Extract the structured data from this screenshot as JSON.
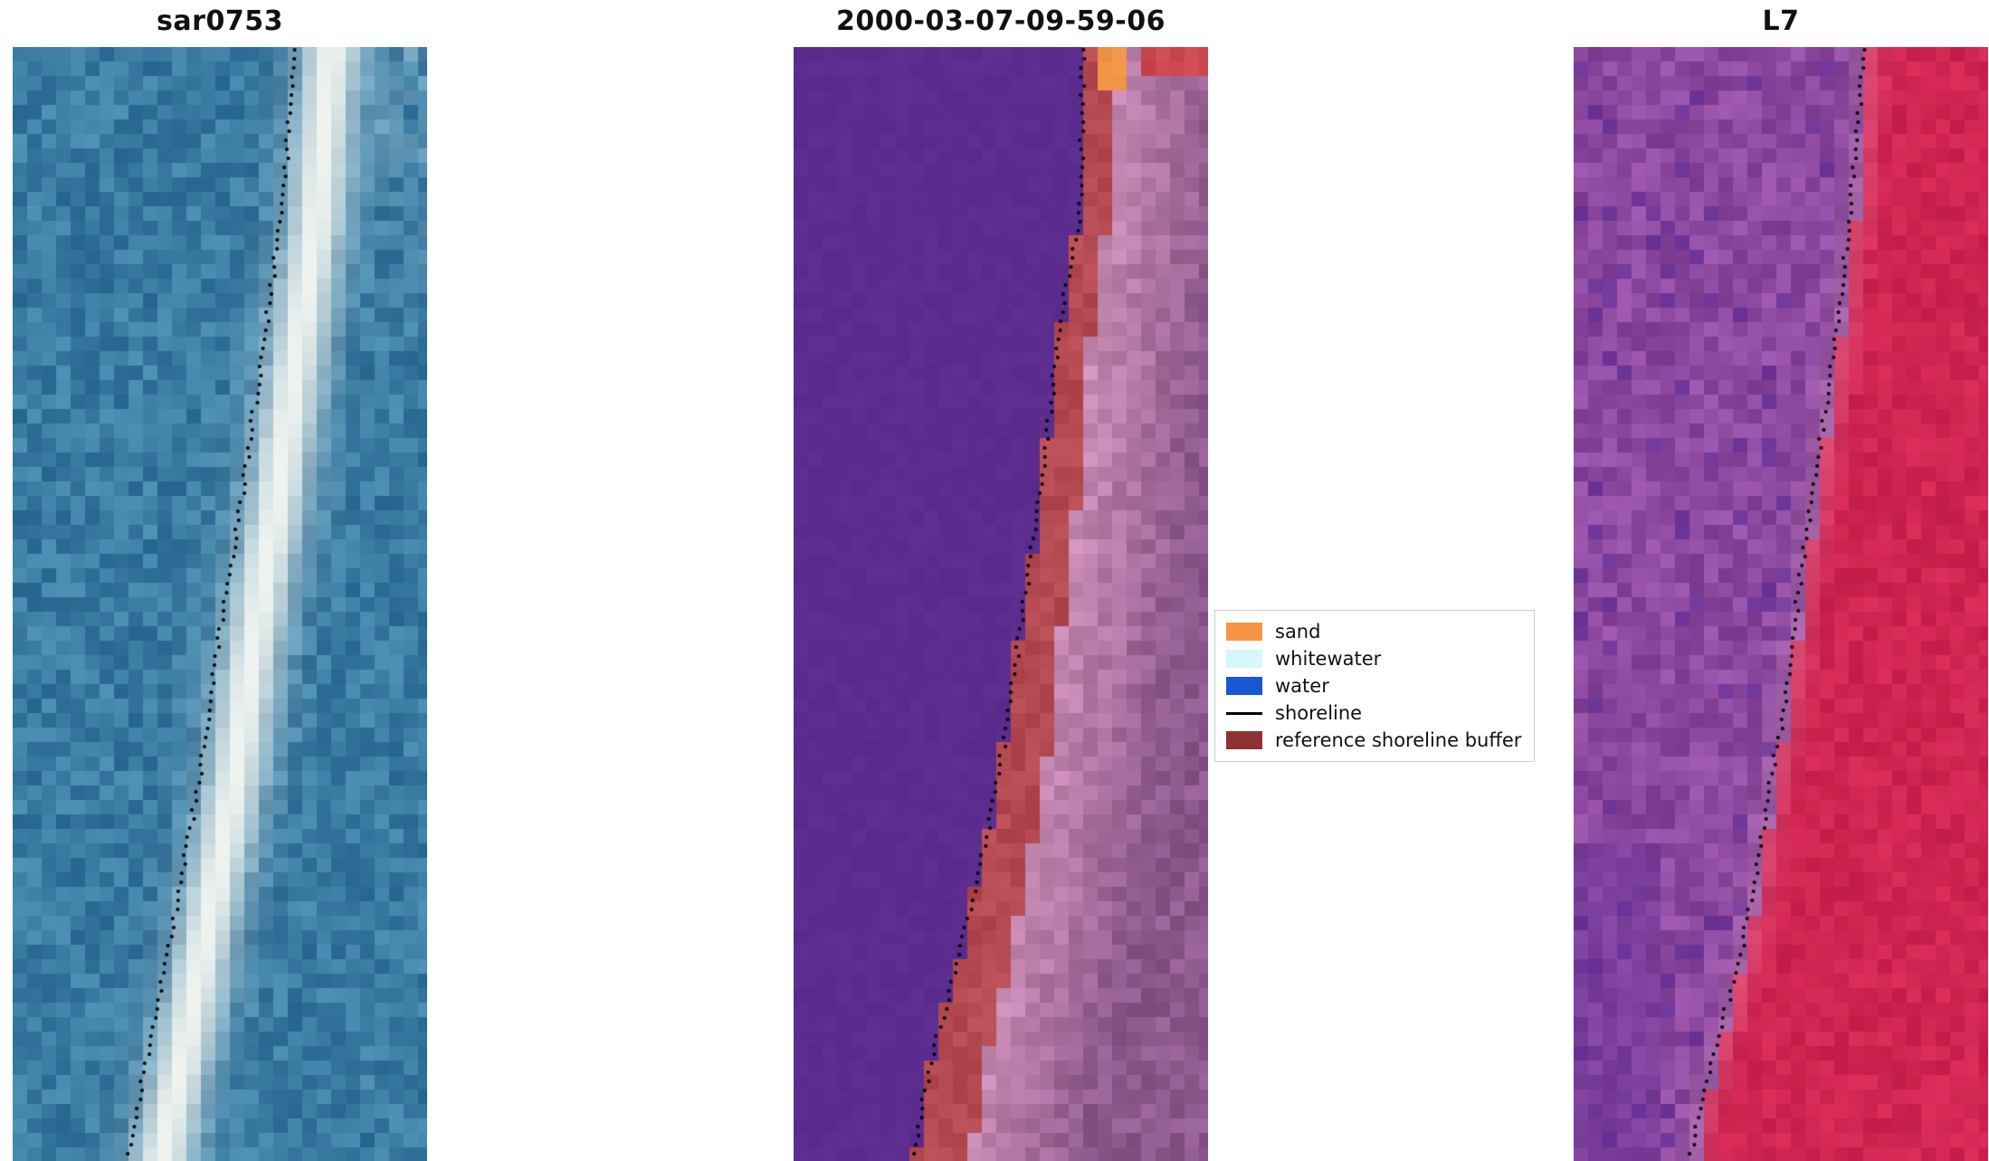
{
  "figure": {
    "panels": [
      {
        "title": "sar0753"
      },
      {
        "title": "2000-03-07-09-59-06"
      },
      {
        "title": "L7"
      }
    ],
    "legend": {
      "items": [
        {
          "label": "sand",
          "color": "#f79446",
          "kind": "patch"
        },
        {
          "label": "whitewater",
          "color": "#d6f8fd",
          "kind": "patch"
        },
        {
          "label": "water",
          "color": "#1757d4",
          "kind": "patch"
        },
        {
          "label": "shoreline",
          "color": "#000000",
          "kind": "line"
        },
        {
          "label": "reference shoreline buffer",
          "color": "#8f3232",
          "kind": "patch"
        }
      ]
    }
  },
  "chart_data": {
    "type": "heatmap",
    "description": "Three coastal satellite image panels with a detected shoreline (dotted black markers) overlaid. Left: SAR backscatter image. Middle: classified image (water purple, reference shoreline buffer brick red, land pink). Right: Landsat 7 false-colour image.",
    "legend_entries": [
      "sand",
      "whitewater",
      "water",
      "shoreline",
      "reference shoreline buffer"
    ],
    "panels": [
      {
        "title": "sar0753",
        "kind": "sar_backscatter",
        "palette": {
          "sea": "#3b7ca3",
          "bright_band": "#f0f4f0"
        },
        "shoreline": [
          [
            0.685,
            0.0
          ],
          [
            0.665,
            0.08
          ],
          [
            0.645,
            0.16
          ],
          [
            0.615,
            0.24
          ],
          [
            0.585,
            0.32
          ],
          [
            0.555,
            0.4
          ],
          [
            0.52,
            0.48
          ],
          [
            0.49,
            0.55
          ],
          [
            0.465,
            0.62
          ],
          [
            0.435,
            0.69
          ],
          [
            0.4,
            0.76
          ],
          [
            0.365,
            0.83
          ],
          [
            0.33,
            0.9
          ],
          [
            0.295,
            0.96
          ],
          [
            0.275,
            1.0
          ]
        ]
      },
      {
        "title": "2000-03-07-09-59-06",
        "kind": "classified",
        "classes": {
          "water": "#5c2d8e",
          "reference_buffer": "#b44a52",
          "land_near": "#c98bb4",
          "land_far": "#8e5a8e",
          "sand": "#ef9446"
        },
        "shoreline": [
          [
            0.7,
            0.0
          ],
          [
            0.695,
            0.08
          ],
          [
            0.69,
            0.15
          ],
          [
            0.655,
            0.22
          ],
          [
            0.63,
            0.29
          ],
          [
            0.61,
            0.36
          ],
          [
            0.585,
            0.43
          ],
          [
            0.555,
            0.5
          ],
          [
            0.53,
            0.57
          ],
          [
            0.505,
            0.63
          ],
          [
            0.47,
            0.7
          ],
          [
            0.43,
            0.77
          ],
          [
            0.39,
            0.83
          ],
          [
            0.345,
            0.89
          ],
          [
            0.31,
            0.95
          ],
          [
            0.29,
            1.0
          ]
        ]
      },
      {
        "title": "L7",
        "kind": "false_colour",
        "palette": {
          "left_purple": "#8d4aa0",
          "right_red": "#d02552",
          "dark_patch": "#5f2b96"
        },
        "shoreline": [
          [
            0.7,
            0.0
          ],
          [
            0.685,
            0.08
          ],
          [
            0.665,
            0.16
          ],
          [
            0.64,
            0.24
          ],
          [
            0.61,
            0.32
          ],
          [
            0.575,
            0.4
          ],
          [
            0.55,
            0.47
          ],
          [
            0.525,
            0.54
          ],
          [
            0.5,
            0.61
          ],
          [
            0.465,
            0.68
          ],
          [
            0.435,
            0.75
          ],
          [
            0.4,
            0.82
          ],
          [
            0.355,
            0.88
          ],
          [
            0.31,
            0.94
          ],
          [
            0.28,
            1.0
          ]
        ]
      }
    ]
  }
}
